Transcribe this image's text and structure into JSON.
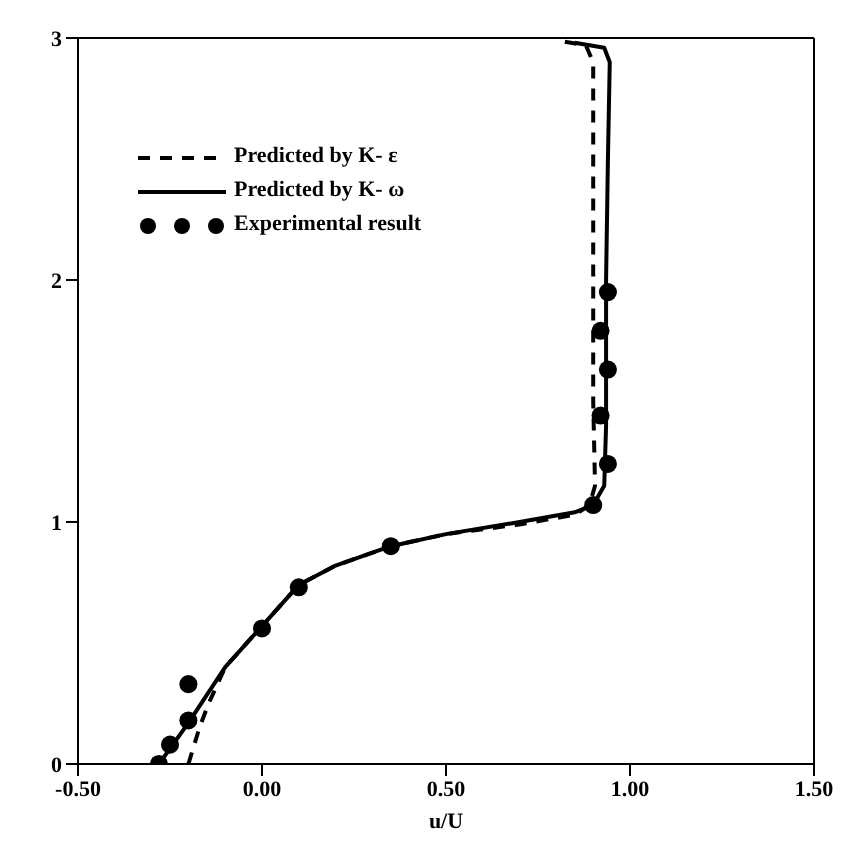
{
  "chart_data": {
    "type": "line",
    "xlabel": "u/U",
    "xlim": [
      -0.5,
      1.5
    ],
    "xticks": [
      {
        "value": -0.5,
        "label": "-0.50"
      },
      {
        "value": 0,
        "label": "0.00"
      },
      {
        "value": 0.5,
        "label": "0.50"
      },
      {
        "value": 1,
        "label": "1.00"
      },
      {
        "value": 1.5,
        "label": "1.50"
      }
    ],
    "ylim": [
      0,
      3
    ],
    "yticks": [
      0,
      1,
      2,
      3
    ],
    "grid": false,
    "legend": "top left",
    "series": [
      {
        "name": "Predicted by K- ε",
        "color": "#000000",
        "line_style": "dashed",
        "marker": "none",
        "x": [
          -0.2,
          -0.17,
          -0.145,
          -0.1,
          0,
          0.1,
          0.2,
          0.35,
          0.5,
          0.7,
          0.85,
          0.89,
          0.905,
          0.9,
          0.9,
          0.9,
          0.88,
          0.8
        ],
        "values": [
          0,
          0.15,
          0.25,
          0.4,
          0.57,
          0.74,
          0.82,
          0.9,
          0.95,
          0.99,
          1.03,
          1.07,
          1.15,
          1.5,
          2.0,
          2.9,
          2.97,
          2.99
        ]
      },
      {
        "name": "Predicted by K- ω",
        "color": "#000000",
        "line_style": "solid",
        "marker": "none",
        "x": [
          -0.28,
          -0.2,
          -0.1,
          0,
          0.1,
          0.2,
          0.35,
          0.5,
          0.7,
          0.85,
          0.9,
          0.93,
          0.935,
          0.935,
          0.94,
          0.945,
          0.93,
          0.85
        ],
        "values": [
          0,
          0.17,
          0.4,
          0.57,
          0.74,
          0.82,
          0.9,
          0.95,
          1.0,
          1.04,
          1.07,
          1.15,
          1.4,
          2.0,
          2.5,
          2.9,
          2.96,
          2.98
        ]
      },
      {
        "name": "Experimental result",
        "type": "scatter",
        "color": "#000000",
        "marker": "circle",
        "x": [
          -0.28,
          -0.25,
          -0.2,
          -0.2,
          0,
          0.1,
          0.35,
          0.9,
          0.94,
          0.92,
          0.94,
          0.92,
          0.94
        ],
        "values": [
          0,
          0.08,
          0.18,
          0.33,
          0.56,
          0.73,
          0.9,
          1.07,
          1.24,
          1.44,
          1.63,
          1.79,
          1.95
        ]
      }
    ]
  }
}
